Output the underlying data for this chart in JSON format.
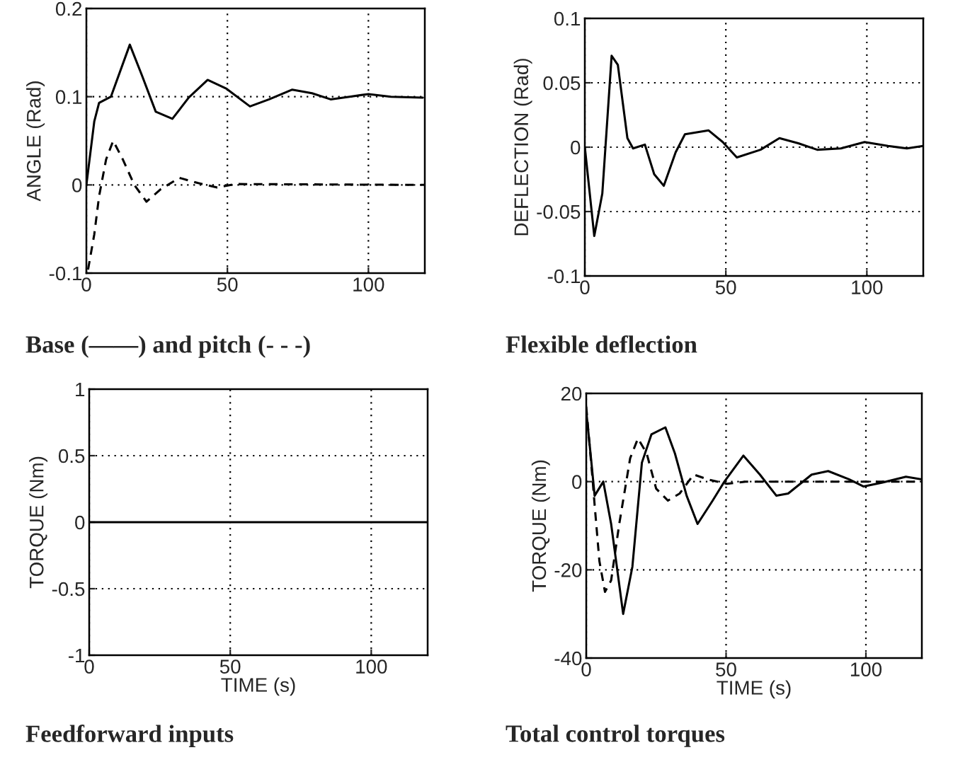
{
  "chart_data": [
    {
      "type": "line",
      "title": "Base (——) and pitch (- - -)",
      "ylabel": "ANGLE (Rad)",
      "xlim": [
        0,
        120
      ],
      "ylim": [
        -0.1,
        0.2
      ],
      "xticks": [
        0,
        50,
        100
      ],
      "yticks": [
        -0.1,
        0,
        0.1,
        0.2
      ],
      "grid": true,
      "series": [
        {
          "color": "#000000",
          "line_style": "solid",
          "x": [
            0,
            2.8,
            4.5,
            8.7,
            15.4,
            19.6,
            24.6,
            30.5,
            36.3,
            43,
            49.7,
            58,
            64.8,
            73,
            80,
            86.6,
            93.3,
            100,
            108,
            119.3
          ],
          "values": [
            0,
            0.072,
            0.093,
            0.1,
            0.159,
            0.125,
            0.083,
            0.075,
            0.099,
            0.119,
            0.109,
            0.089,
            0.097,
            0.108,
            0.104,
            0.097,
            0.1,
            0.103,
            0.1,
            0.099
          ]
        },
        {
          "color": "#000000",
          "line_style": "dashed",
          "x": [
            0.6,
            2.8,
            4.5,
            7,
            9.5,
            12.9,
            17,
            21.3,
            26.3,
            33,
            39.7,
            46.4,
            53,
            120
          ],
          "values": [
            -0.096,
            -0.056,
            -0.013,
            0.029,
            0.05,
            0.029,
            0,
            -0.019,
            -0.005,
            0.008,
            0.002,
            -0.003,
            0.001,
            0
          ]
        }
      ]
    },
    {
      "type": "line",
      "title": "Flexible deflection",
      "ylabel": "DEFLECTION (Rad)",
      "xlim": [
        0,
        120
      ],
      "ylim": [
        -0.1,
        0.1
      ],
      "xticks": [
        0,
        50,
        100
      ],
      "yticks": [
        -0.1,
        -0.05,
        0,
        0.05,
        0.1
      ],
      "grid": true,
      "series": [
        {
          "color": "#000000",
          "line_style": "solid",
          "x": [
            0,
            3.35,
            6.2,
            9.5,
            11.7,
            15.1,
            17.1,
            21.3,
            24.6,
            28,
            32.2,
            35.5,
            43.9,
            48.9,
            53.9,
            62.3,
            69,
            75.7,
            82.4,
            90.8,
            99.2,
            107.5,
            114.2,
            120
          ],
          "values": [
            0,
            -0.069,
            -0.036,
            0.071,
            0.064,
            0.007,
            -0.001,
            0.002,
            -0.021,
            -0.03,
            -0.004,
            0.01,
            0.013,
            0.004,
            -0.008,
            -0.002,
            0.007,
            0.003,
            -0.002,
            -0.001,
            0.004,
            0.001,
            -0.001,
            0.001
          ]
        }
      ]
    },
    {
      "type": "line",
      "title": "Feedforward inputs",
      "ylabel": "TORQUE (Nm)",
      "xlabel": "TIME (s)",
      "xlim": [
        0,
        120
      ],
      "ylim": [
        -1,
        1
      ],
      "xticks": [
        0,
        50,
        100
      ],
      "yticks": [
        -1,
        -0.5,
        0,
        0.5,
        1
      ],
      "grid": true,
      "series": [
        {
          "color": "#000000",
          "line_style": "solid",
          "x": [
            0,
            120
          ],
          "values": [
            0,
            0
          ]
        }
      ]
    },
    {
      "type": "line",
      "title": "Total control torques",
      "ylabel": "TORQUE (Nm)",
      "xlabel": "TIME (s)",
      "xlim": [
        0,
        120
      ],
      "ylim": [
        -40,
        20
      ],
      "xticks": [
        0,
        50,
        100
      ],
      "yticks": [
        -40,
        -20,
        0,
        20
      ],
      "grid": true,
      "series": [
        {
          "color": "#000000",
          "line_style": "solid",
          "x": [
            0,
            1.7,
            3,
            6.1,
            8.9,
            13.2,
            16.5,
            19.9,
            23.3,
            28.3,
            31.7,
            35.9,
            39.8,
            45.2,
            49.4,
            56.2,
            62.1,
            68,
            72.2,
            80.6,
            86.5,
            94.1,
            99.2,
            105.9,
            114.3,
            120
          ],
          "values": [
            16,
            5.3,
            -3.2,
            0,
            -9.6,
            -30,
            -19.3,
            4.3,
            10.7,
            12.3,
            6.4,
            -3.2,
            -9.6,
            -4.3,
            0,
            5.9,
            1.6,
            -3.2,
            -2.7,
            1.6,
            2.4,
            0.5,
            -1.1,
            -0.2,
            1.1,
            0.5
          ]
        },
        {
          "color": "#000000",
          "line_style": "dashed",
          "x": [
            0,
            2.2,
            3,
            4.7,
            6.7,
            8.9,
            11.8,
            15.7,
            18.5,
            21.6,
            25,
            29.2,
            33.4,
            38.4,
            43.5,
            50.3,
            57,
            120
          ],
          "values": [
            17,
            1,
            -5.3,
            -18,
            -25,
            -22.4,
            -9.6,
            5.3,
            9.8,
            6.4,
            -1.6,
            -4.3,
            -2.7,
            1.6,
            0.5,
            -0.5,
            0,
            0
          ]
        }
      ]
    }
  ]
}
